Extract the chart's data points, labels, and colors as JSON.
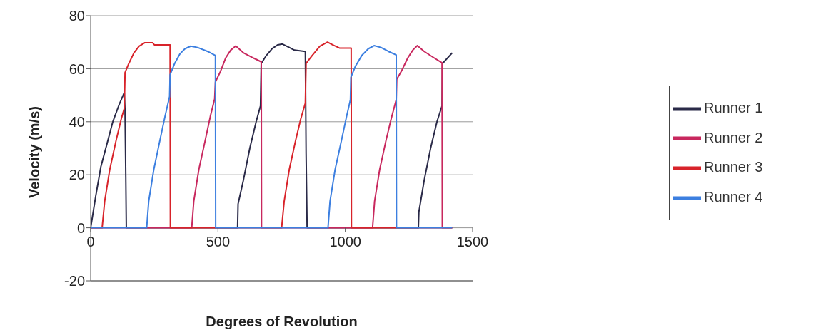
{
  "chart_data": {
    "type": "line",
    "xlabel": "Degrees of Revolution",
    "ylabel": "Velocity (m/s)",
    "xlim": [
      0,
      1500
    ],
    "xticks": [
      0,
      500,
      1000,
      1500
    ],
    "ylim": [
      -20,
      80
    ],
    "yticks": [
      -20,
      0,
      20,
      40,
      60,
      80
    ],
    "grid": "y",
    "legend": "right",
    "marker": "none",
    "line_style": "solid",
    "series": [
      {
        "name": "Runner 1",
        "color": "#2a2a48",
        "x": [
          0,
          20,
          40,
          65,
          87,
          110,
          132,
          135,
          138,
          140,
          577,
          579,
          600,
          625,
          650,
          667,
          670,
          690,
          713,
          735,
          753,
          780,
          800,
          843,
          846,
          850,
          1287,
          1289,
          1310,
          1335,
          1360,
          1380,
          1382,
          1420
        ],
        "values": [
          0,
          12,
          23,
          32,
          40,
          46,
          51,
          44,
          19,
          0,
          0,
          9,
          18,
          30,
          40,
          46,
          62,
          65,
          67.6,
          69,
          69.3,
          68,
          67,
          66.5,
          28,
          0,
          0,
          6,
          18,
          30,
          40,
          46,
          62,
          66
        ]
      },
      {
        "name": "Runner 2",
        "color": "#c8285e",
        "x": [
          0,
          397,
          405,
          425,
          450,
          470,
          487,
          490,
          510,
          530,
          550,
          570,
          600,
          640,
          670,
          671,
          1107,
          1115,
          1135,
          1160,
          1180,
          1200,
          1202,
          1220,
          1245,
          1265,
          1283,
          1310,
          1350,
          1380,
          1381,
          1420
        ],
        "values": [
          0,
          0,
          10,
          22,
          33,
          42,
          48.6,
          55,
          59,
          64,
          67,
          68.6,
          66,
          64,
          62.6,
          0,
          0,
          10,
          22,
          33,
          41,
          48.3,
          56,
          59,
          64,
          67,
          68.7,
          66.5,
          64,
          62.2,
          0,
          0
        ]
      },
      {
        "name": "Runner 3",
        "color": "#d8232a",
        "x": [
          0,
          45,
          55,
          75,
          100,
          120,
          132,
          135,
          150,
          170,
          190,
          213,
          243,
          250,
          312,
          313,
          750,
          760,
          780,
          805,
          825,
          843,
          846,
          870,
          900,
          930,
          950,
          977,
          1023,
          1024,
          1420
        ],
        "values": [
          0,
          0,
          10,
          22,
          33,
          41,
          45,
          58.5,
          62,
          66,
          68.5,
          69.8,
          69.8,
          69,
          69,
          0,
          0,
          10,
          22,
          33,
          41,
          47,
          62,
          65,
          68.5,
          70,
          69,
          67.8,
          67.8,
          0,
          0
        ]
      },
      {
        "name": "Runner 4",
        "color": "#3c7fe0",
        "x": [
          0,
          220,
          228,
          248,
          272,
          292,
          310,
          312,
          330,
          350,
          370,
          393,
          420,
          460,
          490,
          491,
          932,
          940,
          960,
          985,
          1005,
          1020,
          1022,
          1040,
          1065,
          1090,
          1113,
          1140,
          1170,
          1200,
          1201,
          1420
        ],
        "values": [
          0,
          0,
          10,
          22,
          33,
          42,
          49.5,
          57.7,
          62,
          65.5,
          67.5,
          68.5,
          68,
          66.5,
          65,
          0,
          0,
          10,
          22,
          33,
          42,
          48.3,
          56.8,
          61,
          65,
          67.5,
          68.7,
          68,
          66.5,
          65.2,
          0,
          0
        ]
      }
    ]
  }
}
